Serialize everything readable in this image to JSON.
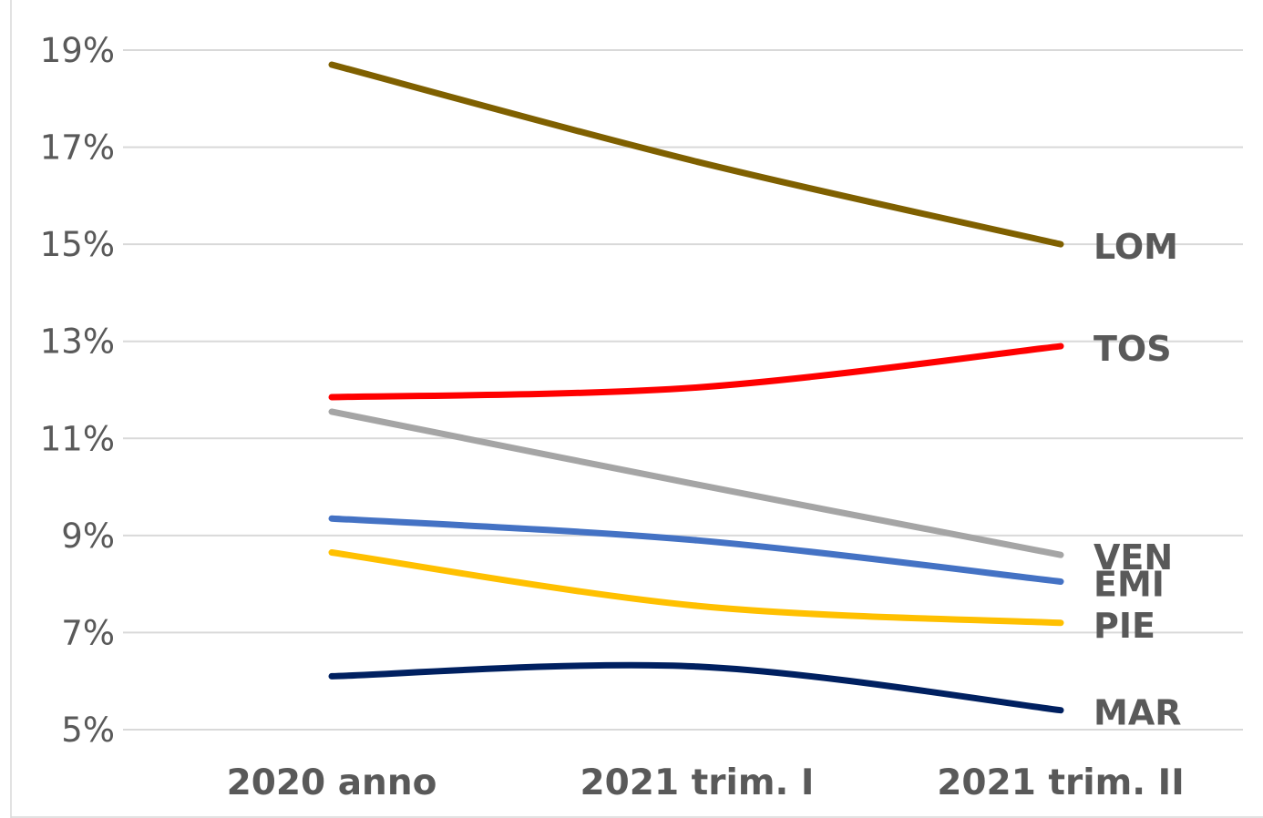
{
  "chart_data": {
    "type": "line",
    "title": "",
    "xlabel": "",
    "ylabel": "",
    "categories": [
      "2020 anno",
      "2021 trim. I",
      "2021 trim. II"
    ],
    "ylim": [
      5,
      19
    ],
    "yticks": [
      5,
      7,
      9,
      11,
      13,
      15,
      17,
      19
    ],
    "ytick_labels": [
      "5%",
      "7%",
      "9%",
      "11%",
      "13%",
      "15%",
      "17%",
      "19%"
    ],
    "grid": true,
    "legend": "none",
    "series": [
      {
        "name": "LOM",
        "values": [
          18.7,
          16.7,
          15.0
        ],
        "color": "#7f6000"
      },
      {
        "name": "TOS",
        "values": [
          11.85,
          12.05,
          12.9
        ],
        "color": "#ff0000"
      },
      {
        "name": "VEN",
        "values": [
          11.55,
          10.05,
          8.6
        ],
        "color": "#a5a5a5"
      },
      {
        "name": "EMI",
        "values": [
          9.35,
          8.9,
          8.05
        ],
        "color": "#4472c4"
      },
      {
        "name": "PIE",
        "values": [
          8.65,
          7.55,
          7.2
        ],
        "color": "#ffc000"
      },
      {
        "name": "MAR",
        "values": [
          6.1,
          6.3,
          5.4
        ],
        "color": "#002060"
      }
    ]
  }
}
